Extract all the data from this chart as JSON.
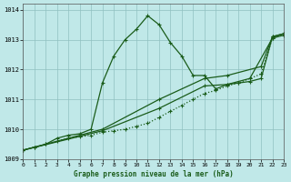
{
  "title": "Graphe pression niveau de la mer (hPa)",
  "bg_color": "#c0e8e8",
  "grid_color": "#90c0c0",
  "line_color": "#1a5c1a",
  "xlim": [
    0,
    23
  ],
  "ylim": [
    1009.0,
    1014.2
  ],
  "yticks": [
    1009,
    1010,
    1011,
    1012,
    1013,
    1014
  ],
  "xticks": [
    0,
    1,
    2,
    3,
    4,
    5,
    6,
    7,
    8,
    9,
    10,
    11,
    12,
    13,
    14,
    15,
    16,
    17,
    18,
    19,
    20,
    21,
    22,
    23
  ],
  "series": [
    {
      "x": [
        0,
        1,
        2,
        3,
        4,
        5,
        6,
        7,
        8,
        9,
        10,
        11,
        12,
        13,
        14,
        15,
        16,
        17,
        18,
        19,
        20,
        21,
        22,
        23
      ],
      "y": [
        1009.3,
        1009.4,
        1009.5,
        1009.6,
        1009.7,
        1009.75,
        1009.8,
        1009.9,
        1009.95,
        1010.0,
        1010.1,
        1010.2,
        1010.4,
        1010.6,
        1010.8,
        1011.0,
        1011.2,
        1011.3,
        1011.45,
        1011.55,
        1011.7,
        1011.85,
        1013.05,
        1013.2
      ],
      "linestyle": "dotted",
      "linewidth": 0.9,
      "marker": "+"
    },
    {
      "x": [
        0,
        1,
        2,
        3,
        4,
        5,
        6,
        7,
        8,
        9,
        10,
        11,
        12,
        13,
        14,
        15,
        16,
        17,
        18,
        19,
        20,
        21,
        22,
        23
      ],
      "y": [
        1009.3,
        1009.4,
        1009.5,
        1009.7,
        1009.8,
        1009.85,
        1010.0,
        1011.55,
        1012.45,
        1013.0,
        1013.35,
        1013.8,
        1013.5,
        1012.9,
        1012.45,
        1011.8,
        1011.8,
        1011.35,
        1011.5,
        1011.55,
        1011.6,
        1011.7,
        1013.1,
        1013.2
      ],
      "linestyle": "solid",
      "linewidth": 0.9,
      "marker": "+"
    },
    {
      "x": [
        0,
        7,
        12,
        16,
        18,
        21,
        22,
        23
      ],
      "y": [
        1009.3,
        1010.0,
        1011.0,
        1011.7,
        1011.8,
        1012.1,
        1013.1,
        1013.2
      ],
      "linestyle": "solid",
      "linewidth": 0.9,
      "marker": "+"
    },
    {
      "x": [
        0,
        7,
        12,
        16,
        18,
        20,
        22,
        23
      ],
      "y": [
        1009.3,
        1009.95,
        1010.7,
        1011.45,
        1011.5,
        1011.7,
        1013.05,
        1013.15
      ],
      "linestyle": "solid",
      "linewidth": 0.9,
      "marker": "+"
    }
  ]
}
